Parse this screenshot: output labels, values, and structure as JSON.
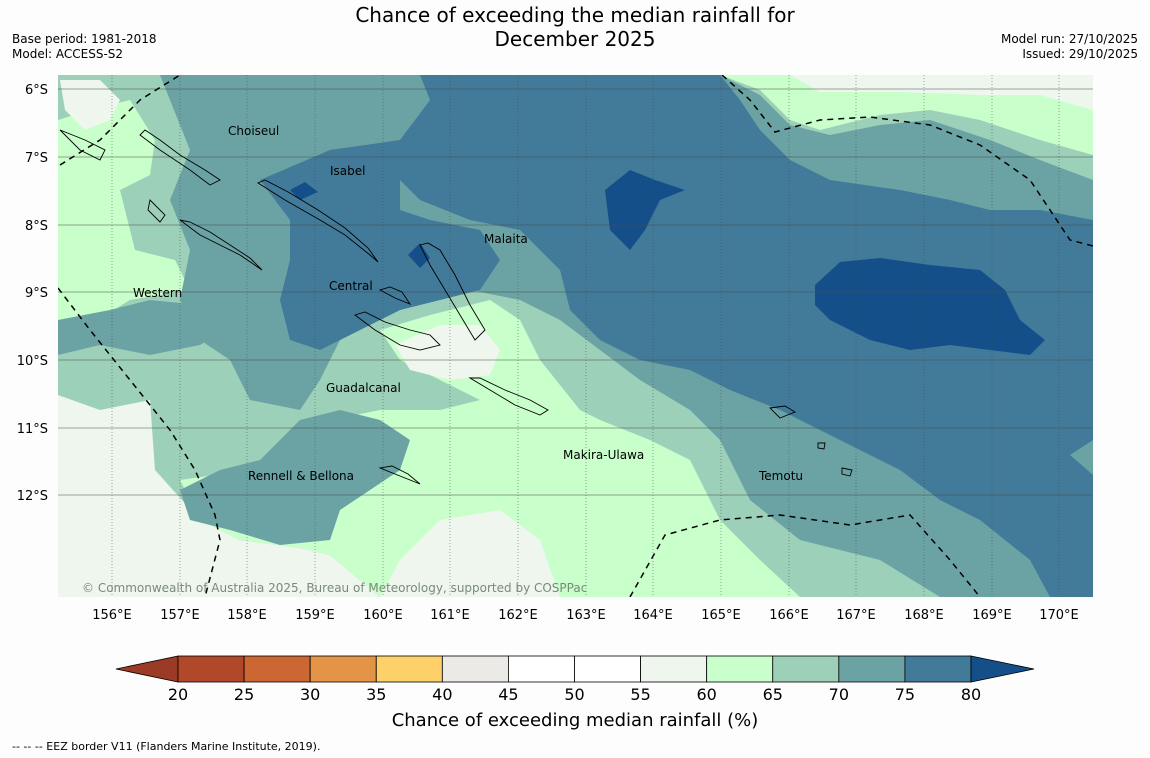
{
  "title_line1": "Chance of exceeding the median rainfall for",
  "title_line2": "December 2025",
  "base_period": "Base period: 1981-2018",
  "model": "Model: ACCESS-S2",
  "model_run": "Model run: 27/10/2025",
  "issued": "Issued: 29/10/2025",
  "lat_labels": [
    "6°S",
    "7°S",
    "8°S",
    "9°S",
    "10°S",
    "11°S",
    "12°S"
  ],
  "lon_labels": [
    "156°E",
    "157°E",
    "158°E",
    "159°E",
    "160°E",
    "161°E",
    "162°E",
    "163°E",
    "164°E",
    "165°E",
    "166°E",
    "167°E",
    "168°E",
    "169°E",
    "170°E"
  ],
  "provinces": [
    "Choiseul",
    "Isabel",
    "Malaita",
    "Western",
    "Central",
    "Guadalcanal",
    "Makira-Ulawa",
    "Rennell & Bellona",
    "Temotu"
  ],
  "copyright": "© Commonwealth of Australia 2025, Bureau of Meteorology, supported by COSPPac",
  "colorbar": {
    "ticks": [
      "20",
      "25",
      "30",
      "35",
      "40",
      "45",
      "50",
      "55",
      "60",
      "65",
      "70",
      "75",
      "80"
    ],
    "colors": [
      "#9c3b25",
      "#b1482a",
      "#cc6633",
      "#e39447",
      "#fdd06a",
      "#eceae6",
      "#ffffff",
      "#ffffff",
      "#eef6ee",
      "#c8ffca",
      "#9cd0b8",
      "#6ba3a5",
      "#427a99",
      "#154f8a"
    ],
    "title": "Chance of exceeding median rainfall (%)"
  },
  "footer": "--  --  -- EEZ border V11 (Flanders Marine Institute, 2019)."
}
